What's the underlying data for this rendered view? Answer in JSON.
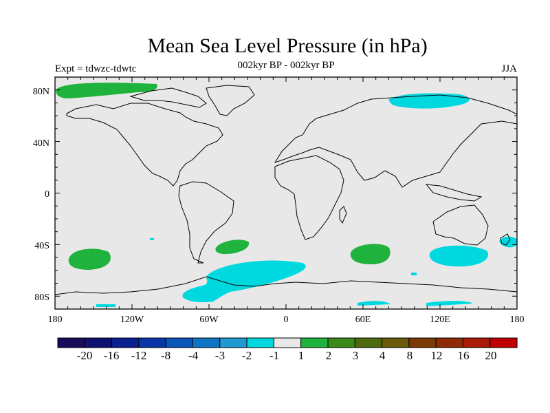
{
  "title": "Mean Sea Level Pressure (in hPa)",
  "subtitle_center": "002kyr BP - 002kyr BP",
  "subtitle_left": "Expt = tdwzc-tdwtc",
  "subtitle_right": "JJA",
  "lat_labels": [
    "80N",
    "40N",
    "0",
    "40S",
    "80S"
  ],
  "lon_labels": [
    "180",
    "120W",
    "60W",
    "0",
    "60E",
    "120E",
    "180"
  ],
  "colorbar": {
    "colors": [
      "#1a0a5a",
      "#0d1270",
      "#0a2090",
      "#0836a6",
      "#0a55b8",
      "#0f74c4",
      "#1e9ad0",
      "#00d8e0",
      "#e8e8e8",
      "#1fb23c",
      "#3a8a1a",
      "#4e6a10",
      "#6a5a0a",
      "#7a3a05",
      "#8f2a05",
      "#a81a05",
      "#c00000"
    ],
    "labels": [
      "-20",
      "-16",
      "-12",
      "-8",
      "-4",
      "-3",
      "-2",
      "-1",
      "1",
      "2",
      "3",
      "4",
      "8",
      "12",
      "16",
      "20"
    ]
  },
  "colors": {
    "background": "#e8e8e8",
    "positive": "#1fb23c",
    "negative": "#00d8e0"
  }
}
